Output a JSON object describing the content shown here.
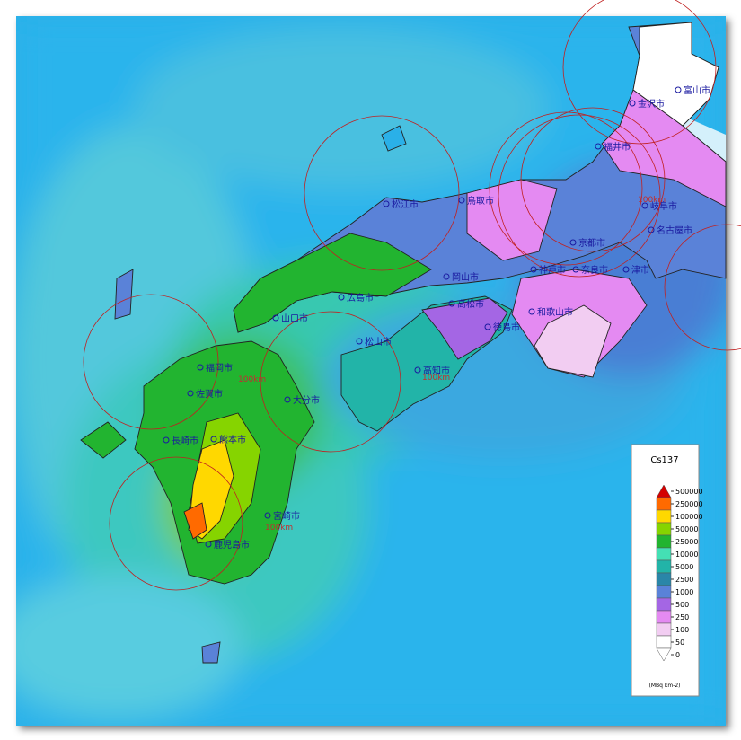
{
  "map": {
    "cities": [
      "富山市",
      "金沢市",
      "福井市",
      "鳥取市",
      "松江市",
      "岐阜市",
      "名古屋市",
      "京都市",
      "神戸市",
      "奈良市",
      "津市",
      "岡山市",
      "広島市",
      "和歌山市",
      "山口市",
      "高松市",
      "徳島市",
      "松山市",
      "高知市",
      "福岡市",
      "佐賀市",
      "大分市",
      "長崎市",
      "熊本市",
      "宮崎市",
      "鹿児島市"
    ],
    "range_labels": [
      "100km",
      "100km",
      "100km",
      "100km"
    ]
  },
  "legend": {
    "title": "Cs137",
    "unit": "(MBq km-2)",
    "levels": [
      {
        "value": 500000,
        "color": "#d40000"
      },
      {
        "value": 250000,
        "color": "#ff6a00"
      },
      {
        "value": 100000,
        "color": "#ffd800"
      },
      {
        "value": 50000,
        "color": "#86d400"
      },
      {
        "value": 25000,
        "color": "#22b430"
      },
      {
        "value": 10000,
        "color": "#44e0b4"
      },
      {
        "value": 5000,
        "color": "#22b4a8"
      },
      {
        "value": 2500,
        "color": "#2a86a8"
      },
      {
        "value": 1000,
        "color": "#5a82d8"
      },
      {
        "value": 500,
        "color": "#a466e4"
      },
      {
        "value": 250,
        "color": "#e48af2"
      },
      {
        "value": 100,
        "color": "#f2cdf2"
      },
      {
        "value": 50,
        "color": "#ffffff"
      },
      {
        "value": 0,
        "color": "#ffffff"
      }
    ]
  }
}
